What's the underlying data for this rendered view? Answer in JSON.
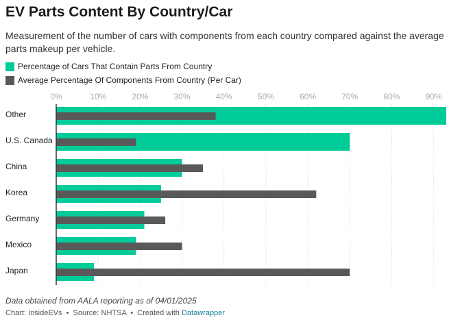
{
  "header": {
    "title": "EV Parts Content By Country/Car",
    "subtitle": "Measurement of the number of cars with components from each country compared against the average parts makeup per vehicle."
  },
  "colors": {
    "series1": "#00cc99",
    "series2": "#595959",
    "grid": "#d9d9d9",
    "tick_text": "#aaaaaa",
    "axis": "#333333"
  },
  "footer": {
    "note": "Data obtained from AALA reporting as of 04/01/2025",
    "credit_prefix": "Chart: InsideEVs",
    "source": "Source: NHTSA",
    "created_with": "Created with",
    "tool": "Datawrapper",
    "separator": "•"
  },
  "chart_data": {
    "type": "bar",
    "orientation": "horizontal",
    "categories": [
      "Other",
      "U.S. Canada",
      "China",
      "Korea",
      "Germany",
      "Mexico",
      "Japan"
    ],
    "series": [
      {
        "name": "Percentage of Cars That Contain Parts From Country",
        "values": [
          93,
          70,
          30,
          25,
          21,
          19,
          9
        ]
      },
      {
        "name": "Average Percentage Of Components From Country (Per Car)",
        "values": [
          38,
          19,
          35,
          62,
          26,
          30,
          70
        ]
      }
    ],
    "xlim": [
      0,
      93
    ],
    "x_ticks": [
      0,
      10,
      20,
      30,
      40,
      50,
      60,
      70,
      80,
      90
    ],
    "tick_format": "%",
    "grid": true,
    "legend_position": "top-left"
  }
}
